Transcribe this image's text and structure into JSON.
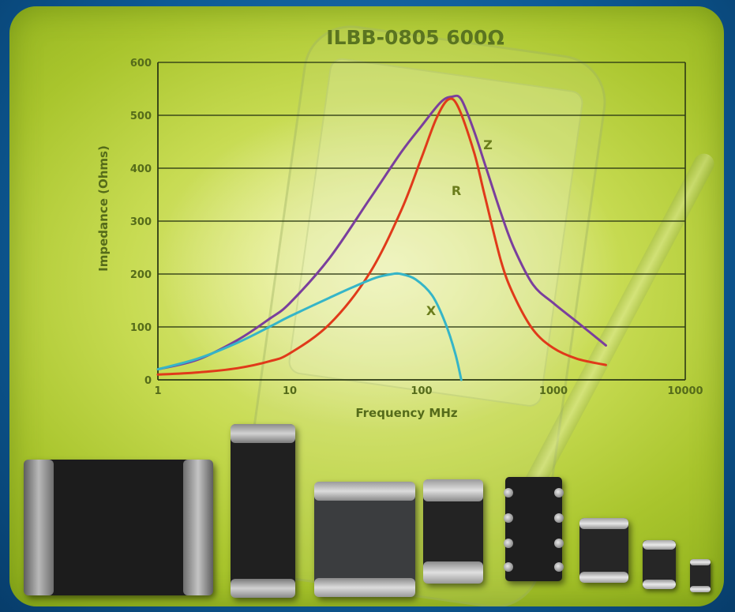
{
  "chart_data": {
    "type": "line",
    "title": "ILBB-0805 600Ω",
    "xlabel": "Frequency MHz",
    "ylabel": "Impedance (Ohms)",
    "xscale": "log",
    "xlim": [
      1,
      10000
    ],
    "ylim": [
      0,
      600
    ],
    "xticks": [
      "1",
      "10",
      "100",
      "1000",
      "10000"
    ],
    "xtick_values": [
      1,
      10,
      100,
      1000,
      10000
    ],
    "yticks": [
      "0",
      "100",
      "200",
      "300",
      "400",
      "500",
      "600"
    ],
    "ytick_values": [
      0,
      100,
      200,
      300,
      400,
      500,
      600
    ],
    "grid": "horizontal",
    "series": [
      {
        "name": "Z",
        "color": "#7a3f9d",
        "x": [
          1,
          2,
          4,
          7,
          10,
          20,
          40,
          70,
          100,
          140,
          170,
          200,
          250,
          300,
          400,
          500,
          700,
          1000,
          1500,
          2500
        ],
        "y": [
          20,
          38,
          75,
          115,
          145,
          230,
          340,
          430,
          480,
          525,
          535,
          530,
          470,
          410,
          315,
          250,
          180,
          145,
          110,
          65
        ]
      },
      {
        "name": "R",
        "color": "#e03a1a",
        "x": [
          1,
          2,
          4,
          7,
          10,
          20,
          40,
          70,
          100,
          130,
          160,
          190,
          250,
          300,
          400,
          500,
          700,
          1000,
          1500,
          2500
        ],
        "y": [
          10,
          14,
          22,
          35,
          50,
          105,
          200,
          320,
          420,
          495,
          530,
          515,
          430,
          350,
          225,
          160,
          95,
          60,
          40,
          28
        ]
      },
      {
        "name": "X",
        "color": "#35b5c8",
        "x": [
          1,
          2,
          4,
          7,
          10,
          20,
          30,
          45,
          60,
          70,
          90,
          120,
          150,
          180,
          200
        ],
        "y": [
          20,
          40,
          70,
          100,
          120,
          155,
          175,
          193,
          200,
          200,
          190,
          160,
          110,
          50,
          0
        ]
      }
    ],
    "annotations": [
      "Z",
      "R",
      "X"
    ],
    "colors": {
      "axis": "#2d3a14",
      "tick_label": "#556b1a",
      "title": "#5a7420",
      "curve_label": "#6b7d1c"
    }
  }
}
